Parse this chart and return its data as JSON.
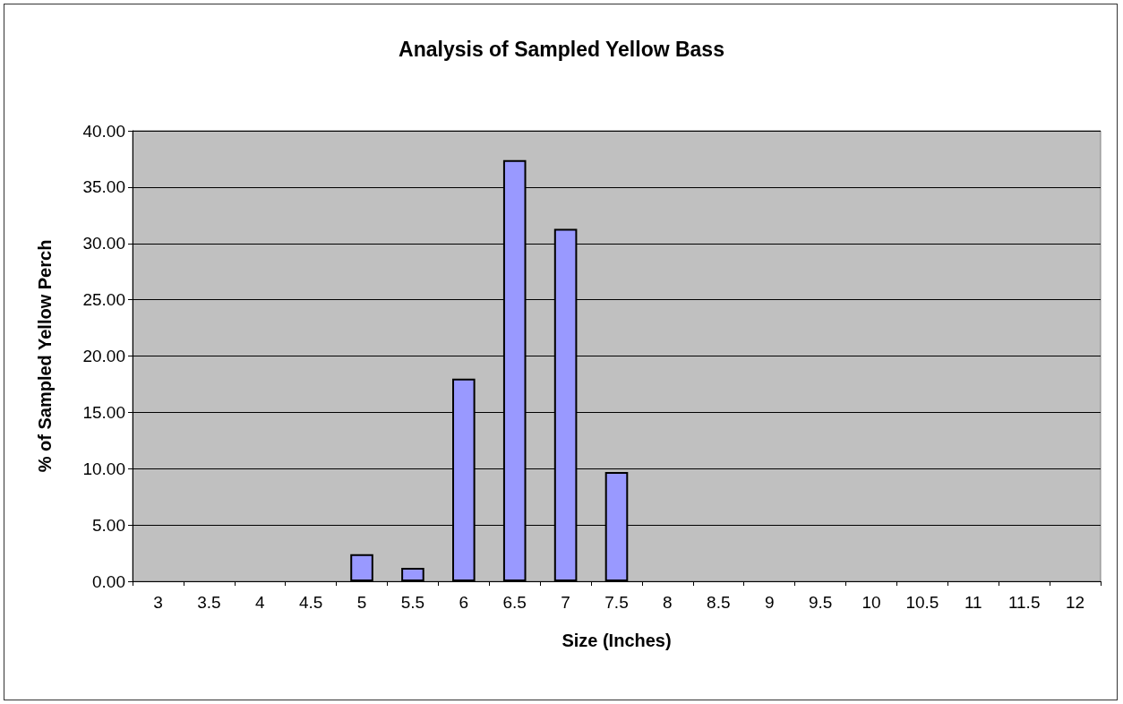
{
  "chart_data": {
    "type": "bar",
    "title": "Analysis of Sampled Yellow Bass",
    "xlabel": "Size (Inches)",
    "ylabel": "% of Sampled Yellow Perch",
    "categories": [
      "3",
      "3.5",
      "4",
      "4.5",
      "5",
      "5.5",
      "6",
      "6.5",
      "7",
      "7.5",
      "8",
      "8.5",
      "9",
      "9.5",
      "10",
      "10.5",
      "11",
      "11.5",
      "12"
    ],
    "values": [
      0,
      0,
      0,
      0,
      2.4,
      1.2,
      18.0,
      37.4,
      31.3,
      9.7,
      0,
      0,
      0,
      0,
      0,
      0,
      0,
      0,
      0
    ],
    "color": "#9999ff",
    "ylim": [
      0,
      40
    ],
    "yticks": [
      {
        "value": 0,
        "label": "0.00"
      },
      {
        "value": 5,
        "label": "5.00"
      },
      {
        "value": 10,
        "label": "10.00"
      },
      {
        "value": 15,
        "label": "15.00"
      },
      {
        "value": 20,
        "label": "20.00"
      },
      {
        "value": 25,
        "label": "25.00"
      },
      {
        "value": 30,
        "label": "30.00"
      },
      {
        "value": 35,
        "label": "35.00"
      },
      {
        "value": 40,
        "label": "40.00"
      }
    ],
    "grid": "y"
  }
}
